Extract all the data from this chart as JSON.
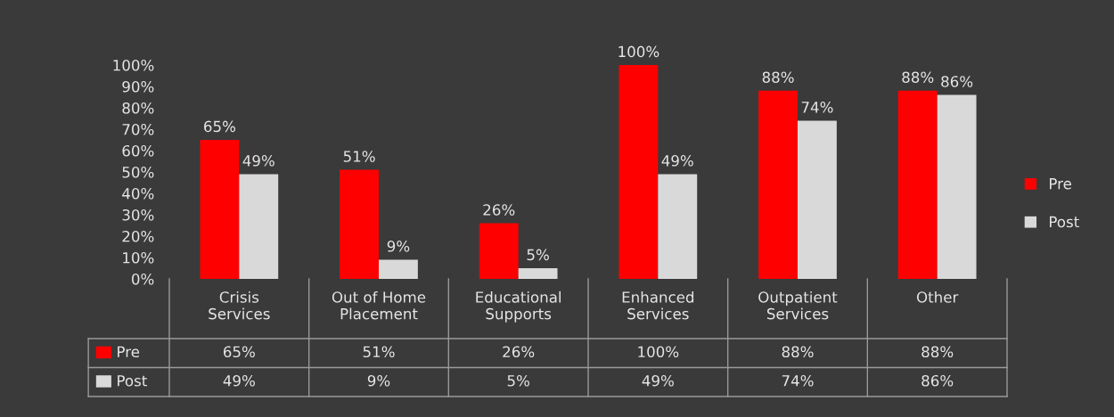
{
  "chart_data": {
    "type": "bar",
    "categories": [
      "Crisis\nServices",
      "Out of Home\nPlacement",
      "Educational\nSupports",
      "Enhanced\nServices",
      "Outpatient\nServices",
      "Other"
    ],
    "series": [
      {
        "name": "Pre",
        "color": "#ff0000",
        "values": [
          65,
          51,
          26,
          100,
          88,
          88
        ],
        "value_labels": [
          "65%",
          "51%",
          "26%",
          "100%",
          "88%",
          "88%"
        ]
      },
      {
        "name": "Post",
        "color": "#d9d9d9",
        "values": [
          49,
          9,
          5,
          49,
          74,
          86
        ],
        "value_labels": [
          "49%",
          "9%",
          "5%",
          "49%",
          "74%",
          "86%"
        ]
      }
    ],
    "ylim": [
      0,
      100
    ],
    "yticks": [
      {
        "value": 0,
        "label": "0%"
      },
      {
        "value": 10,
        "label": "10%"
      },
      {
        "value": 20,
        "label": "20%"
      },
      {
        "value": 30,
        "label": "30%"
      },
      {
        "value": 40,
        "label": "40%"
      },
      {
        "value": 50,
        "label": "50%"
      },
      {
        "value": 60,
        "label": "60%"
      },
      {
        "value": 70,
        "label": "70%"
      },
      {
        "value": 80,
        "label": "80%"
      },
      {
        "value": 90,
        "label": "90%"
      },
      {
        "value": 100,
        "label": "100%"
      }
    ],
    "grid": false,
    "legend": "right"
  }
}
